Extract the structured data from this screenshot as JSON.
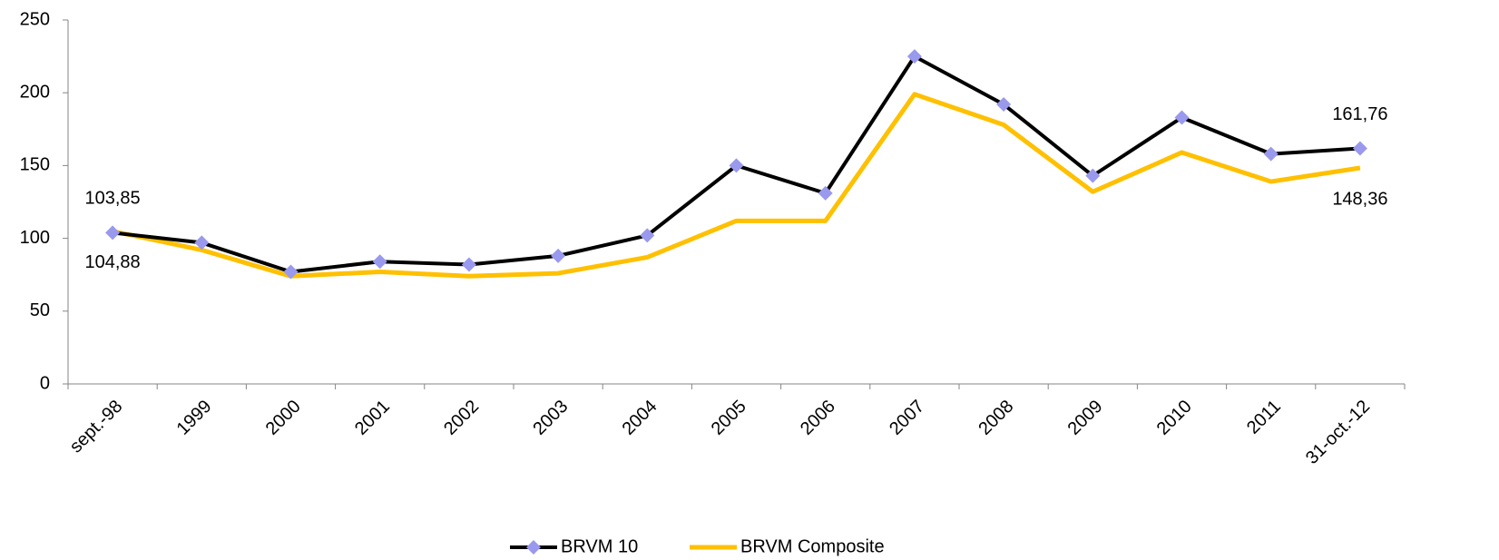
{
  "chart_data": {
    "type": "line",
    "categories": [
      "sept.-98",
      "1999",
      "2000",
      "2001",
      "2002",
      "2003",
      "2004",
      "2005",
      "2006",
      "2007",
      "2008",
      "2009",
      "2010",
      "2011",
      "31-oct.-12"
    ],
    "series": [
      {
        "name": "BRVM 10",
        "color": "#000000",
        "marker_color": "#9999ee",
        "values": [
          103.85,
          97,
          77,
          84,
          82,
          88,
          102,
          150,
          131,
          225,
          192,
          143,
          183,
          158,
          161.76
        ],
        "value_labels": [
          "103,85",
          null,
          null,
          null,
          null,
          null,
          null,
          null,
          null,
          null,
          null,
          null,
          null,
          null,
          "161,76"
        ]
      },
      {
        "name": "BRVM Composite",
        "color": "#ffc000",
        "values": [
          104.88,
          92,
          74,
          77,
          74,
          76,
          87,
          112,
          112,
          199,
          178,
          132,
          159,
          139,
          148.36
        ],
        "value_labels": [
          "104,88",
          null,
          null,
          null,
          null,
          null,
          null,
          null,
          null,
          null,
          null,
          null,
          null,
          null,
          "148,36"
        ]
      }
    ],
    "ylim": [
      0,
      250
    ],
    "yticks": [
      0,
      50,
      100,
      150,
      200,
      250
    ],
    "grid": false,
    "legend": "bottom"
  }
}
